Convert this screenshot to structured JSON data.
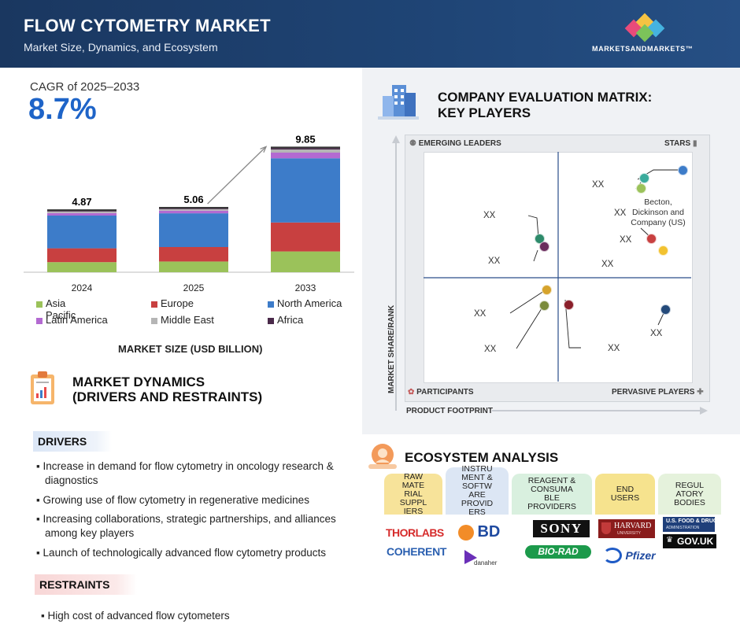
{
  "header": {
    "title": "FLOW CYTOMETRY MARKET",
    "subtitle": "Market Size, Dynamics, and Ecosystem",
    "logo_text": "MARKETSANDMARKETS™"
  },
  "cagr": {
    "label": "CAGR of 2025–2033",
    "value": "8.7%"
  },
  "chart_data": {
    "type": "bar",
    "stacked": true,
    "title": "MARKET SIZE (USD BILLION)",
    "categories": [
      "2024",
      "2025",
      "2033"
    ],
    "totals": [
      "4.87",
      "5.06",
      "9.85"
    ],
    "series": [
      {
        "name": "Asia Pacific",
        "color": "#9bc25a",
        "values": [
          0.8,
          0.85,
          1.65
        ]
      },
      {
        "name": "Europe",
        "color": "#c84040",
        "values": [
          1.1,
          1.15,
          2.3
        ]
      },
      {
        "name": "North America",
        "color": "#3d7cc9",
        "values": [
          2.6,
          2.68,
          5.1
        ]
      },
      {
        "name": "Latin America",
        "color": "#b36ad1",
        "values": [
          0.2,
          0.21,
          0.45
        ]
      },
      {
        "name": "Middle East",
        "color": "#b5b5b5",
        "values": [
          0.12,
          0.12,
          0.25
        ]
      },
      {
        "name": "Africa",
        "color": "#4a2a4a",
        "values": [
          0.05,
          0.05,
          0.1
        ]
      }
    ],
    "legend": "bottom"
  },
  "dynamics": {
    "title_line1": "MARKET DYNAMICS",
    "title_line2": "(DRIVERS AND RESTRAINTS)",
    "drivers_label": "DRIVERS",
    "drivers": [
      {
        "line1": "Increase in demand for flow cytometry in oncology research &",
        "line2": "diagnostics"
      },
      {
        "line1": "Growing use of flow cytometry in regenerative medicines",
        "line2": ""
      },
      {
        "line1": "Increasing collaborations, strategic partnerships, and alliances",
        "line2": "among key players"
      },
      {
        "line1": "Launch of technologically advanced flow cytometry products",
        "line2": ""
      }
    ],
    "restraints_label": "RESTRAINTS",
    "restraints": [
      "High cost of advanced flow cytometers"
    ]
  },
  "matrix": {
    "title_line1": "COMPANY EVALUATION MATRIX:",
    "title_line2": "KEY PLAYERS",
    "corners": {
      "emerging": "EMERGING LEADERS",
      "stars": "STARS",
      "participants": "PARTICIPANTS",
      "pervasive": "PERVASIVE PLAYERS"
    },
    "axis_y": "MARKET SHARE/RANK",
    "axis_x": "PRODUCT FOOTPRINT",
    "placeholder": "XX",
    "bd_label_line1": "Becton,",
    "bd_label_line2": "Dickinson and",
    "bd_label_line3": "Company (US)"
  },
  "ecosystem": {
    "title": "ECOSYSTEM ANALYSIS",
    "tabs": [
      {
        "lines": [
          "RAW",
          "MATE",
          "RIAL",
          "SUPPL",
          "IERS"
        ],
        "color": "#f7e39a"
      },
      {
        "lines": [
          "INSTRU",
          "MENT &",
          "SOFTW",
          "ARE",
          "PROVID",
          "ERS"
        ],
        "color": "#dce6f4"
      },
      {
        "lines": [
          "REAGENT &",
          "CONSUMA",
          "BLE",
          "PROVIDERS"
        ],
        "color": "#d9f0df"
      },
      {
        "lines": [
          "END",
          "USERS"
        ],
        "color": "#f6e38e"
      },
      {
        "lines": [
          "REGUL",
          "ATORY",
          "BODIES"
        ],
        "color": "#e5f2dc"
      }
    ],
    "brands": {
      "thorlabs": "THORLABS",
      "coherent": "COHERENT",
      "bd": "BD",
      "danaher": "danaher",
      "sony": "SONY",
      "biorad": "BIO-RAD",
      "harvard": "HARVARD",
      "harvard_sub": "UNIVERSITY",
      "pfizer": "Pfizer",
      "fda": "U.S. FOOD & DRUG",
      "fda_sub": "ADMINISTRATION",
      "govuk": "GOV.UK"
    }
  }
}
